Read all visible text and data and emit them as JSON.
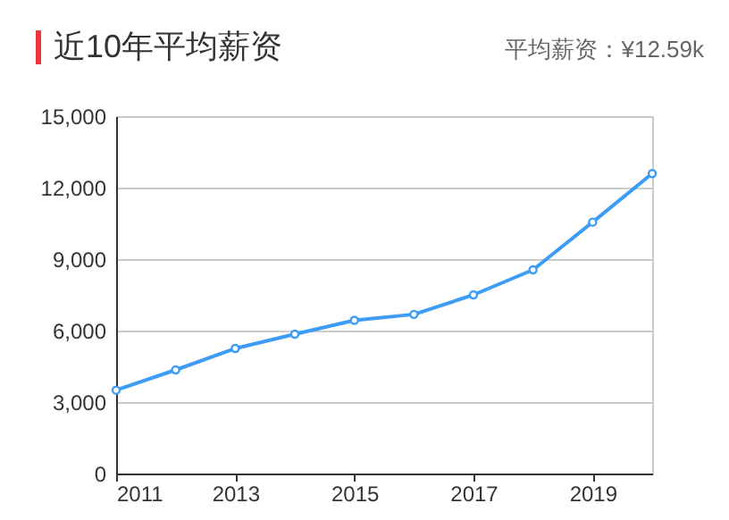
{
  "chart_data": {
    "type": "line",
    "title": "近10年平均薪资",
    "subtitle": "平均薪资：¥12.59k",
    "x": [
      2011,
      2012,
      2013,
      2014,
      2015,
      2016,
      2017,
      2018,
      2019,
      2020
    ],
    "series": [
      {
        "color": "#3d9cf5",
        "values": [
          3500,
          4350,
          5250,
          5850,
          6430,
          6680,
          7500,
          8550,
          10550,
          12590
        ]
      }
    ],
    "xlim": [
      2011,
      2020
    ],
    "xticks": [
      2011,
      2013,
      2015,
      2017,
      2019
    ],
    "ylim": [
      0,
      15000
    ],
    "yticks": [
      {
        "value": 0,
        "label": "0"
      },
      {
        "value": 3000,
        "label": "3,000"
      },
      {
        "value": 6000,
        "label": "6,000"
      },
      {
        "value": 9000,
        "label": "9,000"
      },
      {
        "value": 12000,
        "label": "12,000"
      },
      {
        "value": 15000,
        "label": "15,000"
      }
    ],
    "grid": "y",
    "marker": "circle",
    "line_style": "solid"
  }
}
